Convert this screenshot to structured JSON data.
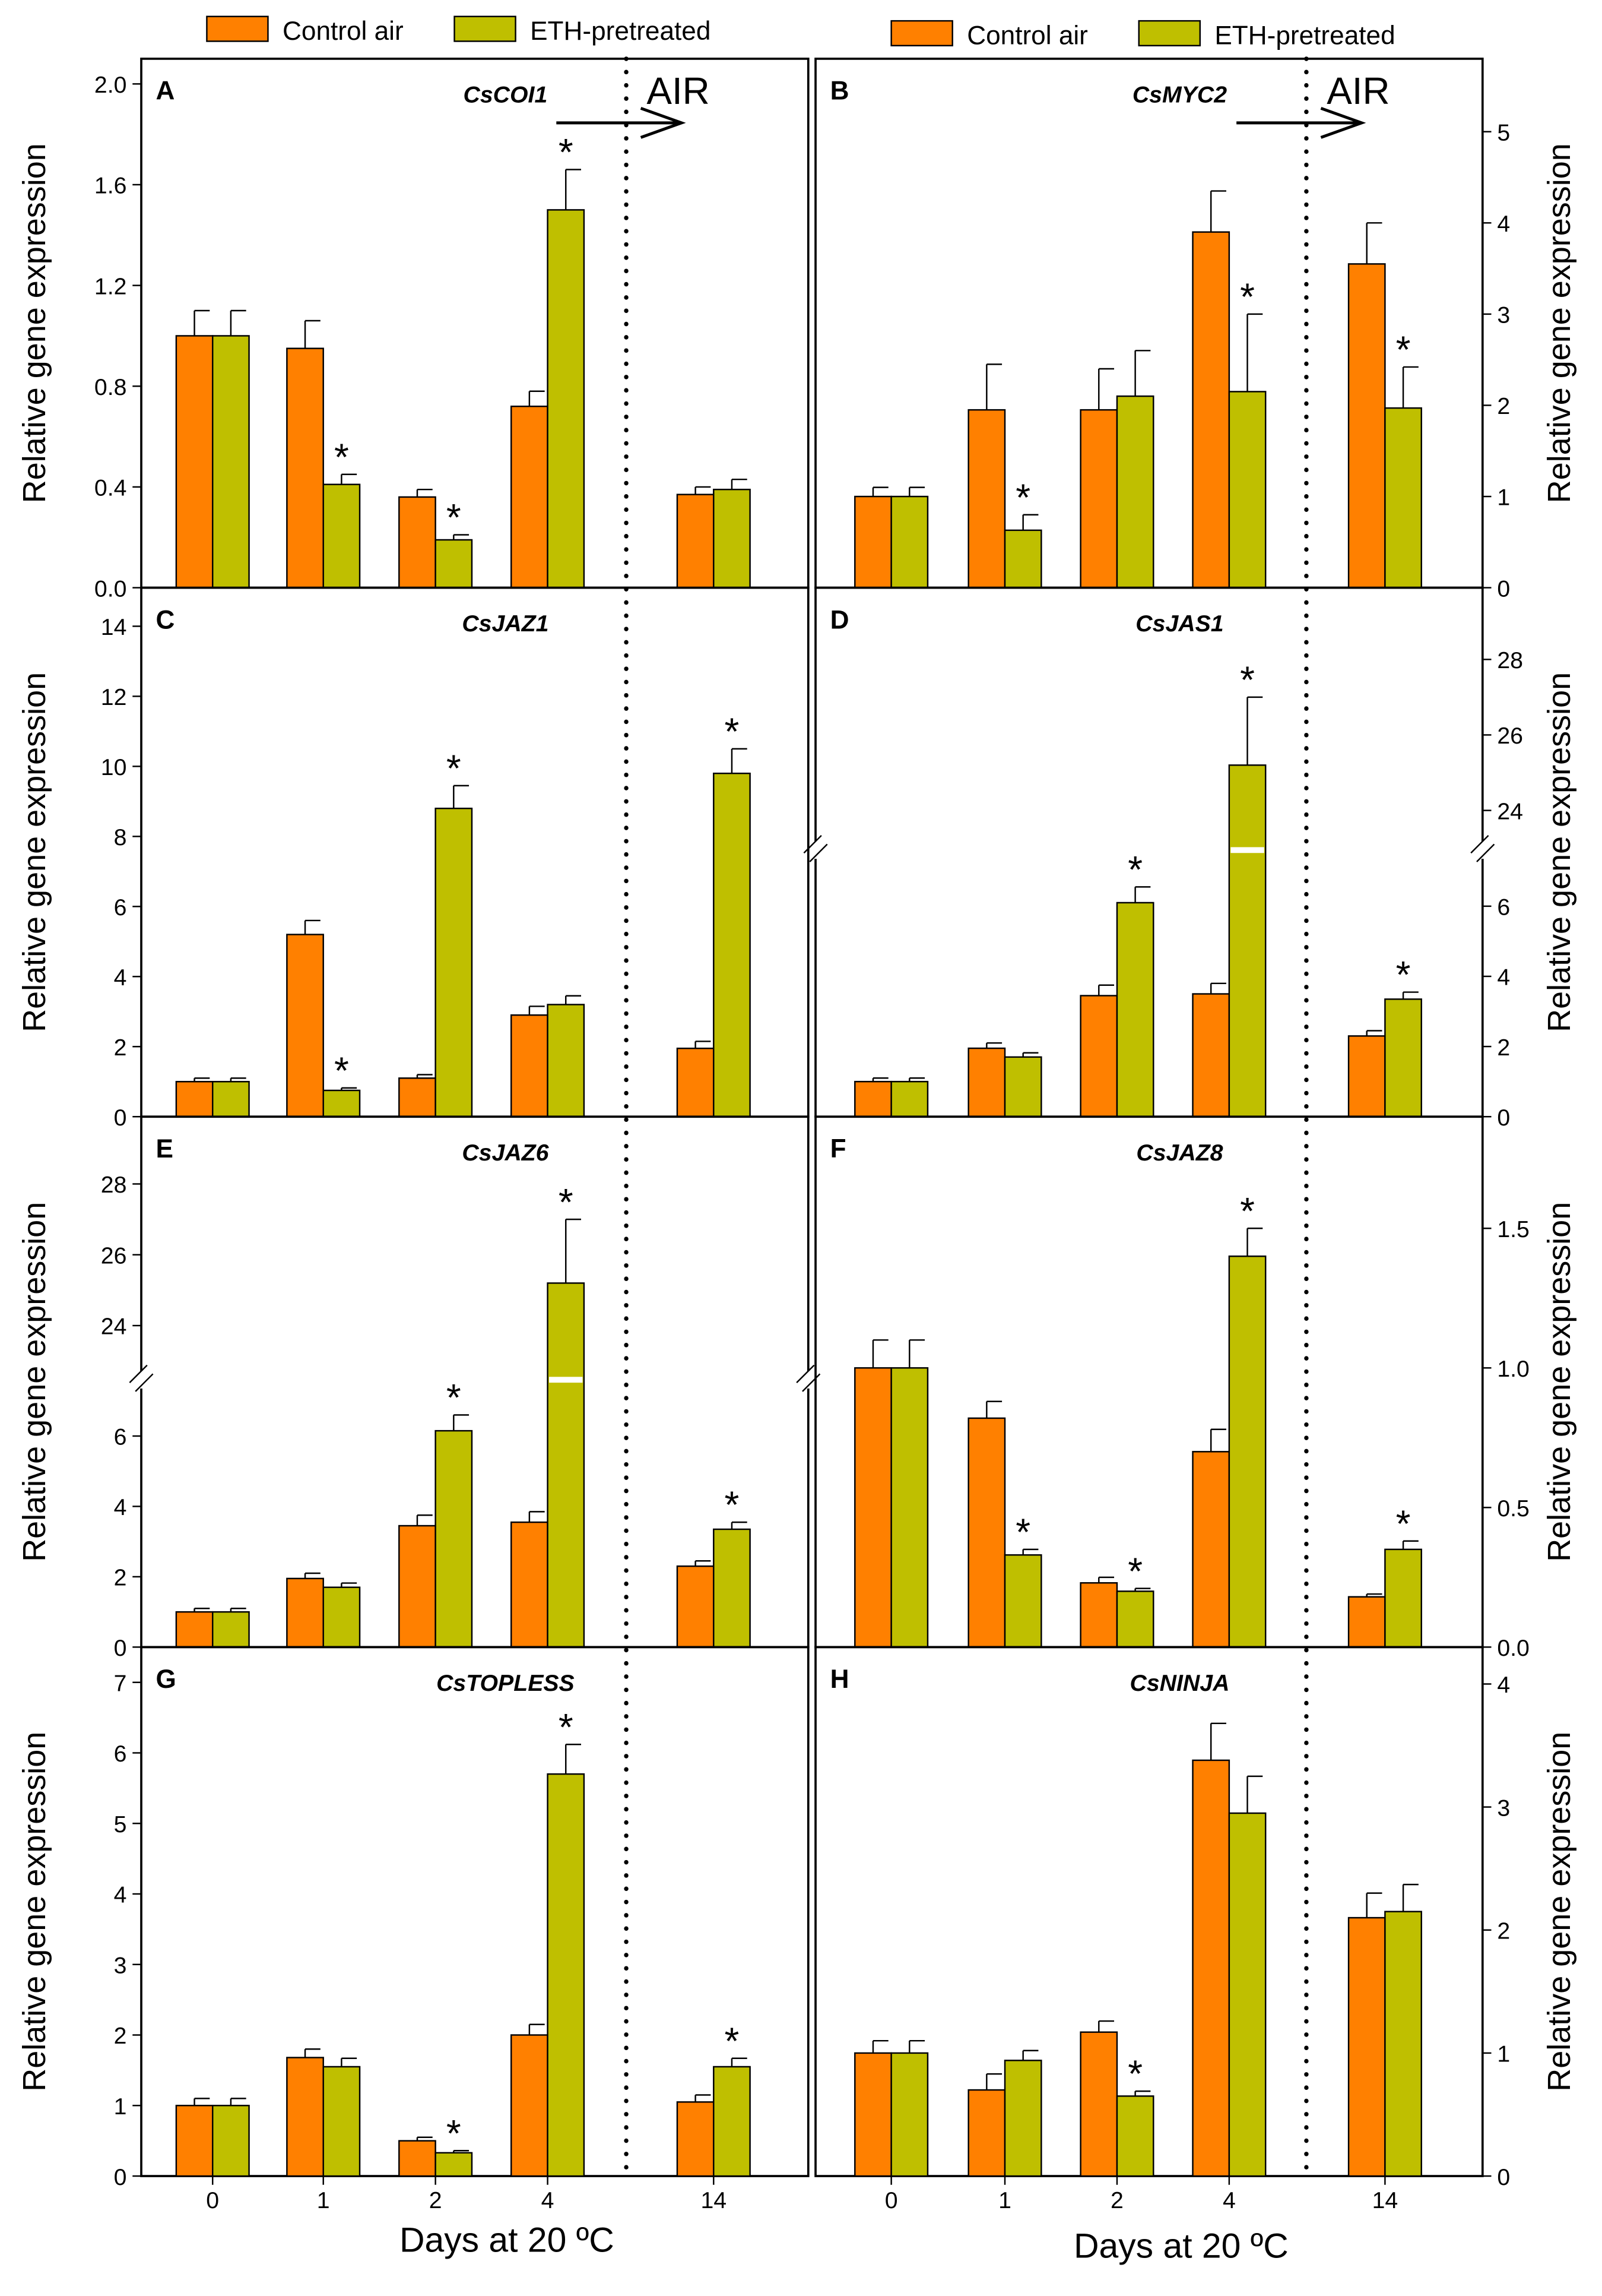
{
  "colors": {
    "control": "#FF8000",
    "eth": "#BFBF00"
  },
  "legend": {
    "control": "Control air",
    "eth": "ETH-pretreated"
  },
  "air_label": "AIR",
  "xlabel": "Days at 20 ºC",
  "ylabel": "Relative gene expression",
  "chart_data": [
    {
      "type": "bar",
      "panel": "A",
      "gene": "CsCOI1",
      "categories": [
        "0",
        "1",
        "2",
        "4",
        "14"
      ],
      "ylim": [
        0,
        2.1
      ],
      "ticks": [
        "0.0",
        "0.4",
        "0.8",
        "1.2",
        "1.6",
        "2.0"
      ],
      "tick_values": [
        0,
        0.4,
        0.8,
        1.2,
        1.6,
        2.0
      ],
      "axis_side": "left",
      "series": [
        {
          "name": "Control air",
          "values": [
            1.0,
            0.95,
            0.36,
            0.72,
            0.37
          ],
          "errors": [
            0.1,
            0.11,
            0.03,
            0.06,
            0.03
          ],
          "significant": [
            false,
            false,
            false,
            false,
            false
          ]
        },
        {
          "name": "ETH-pretreated",
          "values": [
            1.0,
            0.41,
            0.19,
            1.5,
            0.39
          ],
          "errors": [
            0.1,
            0.04,
            0.02,
            0.16,
            0.04
          ],
          "significant": [
            false,
            true,
            true,
            true,
            false
          ]
        }
      ]
    },
    {
      "type": "bar",
      "panel": "B",
      "gene": "CsMYC2",
      "categories": [
        "0",
        "1",
        "2",
        "4",
        "14"
      ],
      "ylim": [
        0,
        5.8
      ],
      "ticks": [
        "0",
        "1",
        "2",
        "3",
        "4",
        "5"
      ],
      "tick_values": [
        0,
        1,
        2,
        3,
        4,
        5
      ],
      "axis_side": "right",
      "series": [
        {
          "name": "Control air",
          "values": [
            1.0,
            1.95,
            1.95,
            3.9,
            3.55
          ],
          "errors": [
            0.1,
            0.5,
            0.45,
            0.45,
            0.45
          ],
          "significant": [
            false,
            false,
            false,
            false,
            false
          ]
        },
        {
          "name": "ETH-pretreated",
          "values": [
            1.0,
            0.63,
            2.1,
            2.15,
            1.97
          ],
          "errors": [
            0.1,
            0.17,
            0.5,
            0.85,
            0.45
          ],
          "significant": [
            false,
            true,
            false,
            true,
            true
          ]
        }
      ]
    },
    {
      "type": "bar",
      "panel": "C",
      "gene": "CsJAZ1",
      "categories": [
        "0",
        "1",
        "2",
        "4",
        "14"
      ],
      "ylim": [
        0,
        15.1
      ],
      "ticks": [
        "0",
        "2",
        "4",
        "6",
        "8",
        "10",
        "12",
        "14"
      ],
      "tick_values": [
        0,
        2,
        4,
        6,
        8,
        10,
        12,
        14
      ],
      "axis_side": "left",
      "series": [
        {
          "name": "Control air",
          "values": [
            1.0,
            5.2,
            1.1,
            2.9,
            1.95
          ],
          "errors": [
            0.1,
            0.4,
            0.1,
            0.25,
            0.2
          ],
          "significant": [
            false,
            false,
            false,
            false,
            false
          ]
        },
        {
          "name": "ETH-pretreated",
          "values": [
            1.0,
            0.75,
            8.8,
            3.2,
            9.8
          ],
          "errors": [
            0.1,
            0.07,
            0.65,
            0.25,
            0.7
          ],
          "significant": [
            false,
            true,
            true,
            false,
            true
          ]
        }
      ]
    },
    {
      "type": "bar",
      "panel": "D",
      "gene": "CsJAS1",
      "categories": [
        "0",
        "1",
        "2",
        "4",
        "14"
      ],
      "ylim": [
        0,
        29.9
      ],
      "axis_break": [
        7.6,
        22.95
      ],
      "ticks": [
        "0",
        "2",
        "4",
        "6",
        "24",
        "26",
        "28"
      ],
      "tick_values": [
        0,
        2,
        4,
        6,
        24,
        26,
        28
      ],
      "axis_side": "right",
      "series": [
        {
          "name": "Control air",
          "values": [
            1.0,
            1.95,
            3.45,
            3.5,
            2.3
          ],
          "errors": [
            0.1,
            0.15,
            0.3,
            0.3,
            0.15
          ],
          "significant": [
            false,
            false,
            false,
            false,
            false
          ]
        },
        {
          "name": "ETH-pretreated",
          "values": [
            1.0,
            1.7,
            6.1,
            25.2,
            3.35
          ],
          "errors": [
            0.1,
            0.12,
            0.45,
            1.8,
            0.2
          ],
          "significant": [
            false,
            false,
            true,
            true,
            true
          ]
        }
      ]
    },
    {
      "type": "bar",
      "panel": "E",
      "gene": "CsJAZ6",
      "categories": [
        "0",
        "1",
        "2",
        "4",
        "14"
      ],
      "ylim": [
        0,
        29.9
      ],
      "axis_break": [
        7.6,
        22.47
      ],
      "ticks": [
        "0",
        "2",
        "4",
        "6",
        "24",
        "26",
        "28"
      ],
      "tick_values": [
        0,
        2,
        4,
        6,
        24,
        26,
        28
      ],
      "axis_side": "left",
      "series": [
        {
          "name": "Control air",
          "values": [
            1.0,
            1.95,
            3.45,
            3.55,
            2.3
          ],
          "errors": [
            0.1,
            0.15,
            0.3,
            0.3,
            0.15
          ],
          "significant": [
            false,
            false,
            false,
            false,
            false
          ]
        },
        {
          "name": "ETH-pretreated",
          "values": [
            1.0,
            1.7,
            6.15,
            25.2,
            3.35
          ],
          "errors": [
            0.1,
            0.12,
            0.45,
            1.8,
            0.2
          ],
          "significant": [
            false,
            false,
            true,
            true,
            true
          ]
        }
      ]
    },
    {
      "type": "bar",
      "panel": "F",
      "gene": "CsJAZ8",
      "categories": [
        "0",
        "1",
        "2",
        "4",
        "14"
      ],
      "ylim": [
        0,
        1.9
      ],
      "ticks": [
        "0.0",
        "0.5",
        "1.0",
        "1.5"
      ],
      "tick_values": [
        0,
        0.5,
        1.0,
        1.5
      ],
      "axis_side": "right",
      "series": [
        {
          "name": "Control air",
          "values": [
            1.0,
            0.82,
            0.23,
            0.7,
            0.18
          ],
          "errors": [
            0.1,
            0.06,
            0.02,
            0.08,
            0.01
          ],
          "significant": [
            false,
            false,
            false,
            false,
            false
          ]
        },
        {
          "name": "ETH-pretreated",
          "values": [
            1.0,
            0.33,
            0.2,
            1.4,
            0.35
          ],
          "errors": [
            0.1,
            0.02,
            0.01,
            0.1,
            0.03
          ],
          "significant": [
            false,
            true,
            true,
            true,
            true
          ]
        }
      ]
    },
    {
      "type": "bar",
      "panel": "G",
      "gene": "CsTOPLESS",
      "categories": [
        "0",
        "1",
        "2",
        "4",
        "14"
      ],
      "ylim": [
        0,
        7.5
      ],
      "ticks": [
        "0",
        "1",
        "2",
        "3",
        "4",
        "5",
        "6",
        "7"
      ],
      "tick_values": [
        0,
        1,
        2,
        3,
        4,
        5,
        6,
        7
      ],
      "axis_side": "left",
      "series": [
        {
          "name": "Control air",
          "values": [
            1.0,
            1.68,
            0.5,
            2.0,
            1.05
          ],
          "errors": [
            0.1,
            0.12,
            0.05,
            0.15,
            0.1
          ],
          "significant": [
            false,
            false,
            false,
            false,
            false
          ]
        },
        {
          "name": "ETH-pretreated",
          "values": [
            1.0,
            1.55,
            0.33,
            5.7,
            1.55
          ],
          "errors": [
            0.1,
            0.12,
            0.03,
            0.42,
            0.12
          ],
          "significant": [
            false,
            false,
            true,
            true,
            true
          ]
        }
      ]
    },
    {
      "type": "bar",
      "panel": "H",
      "gene": "CsNINJA",
      "categories": [
        "0",
        "1",
        "2",
        "4",
        "14"
      ],
      "ylim": [
        0,
        4.3
      ],
      "ticks": [
        "0",
        "1",
        "2",
        "3",
        "4"
      ],
      "tick_values": [
        0,
        1,
        2,
        3,
        4
      ],
      "axis_side": "right",
      "series": [
        {
          "name": "Control air",
          "values": [
            1.0,
            0.7,
            1.17,
            3.38,
            2.1
          ],
          "errors": [
            0.1,
            0.13,
            0.09,
            0.3,
            0.2
          ],
          "significant": [
            false,
            false,
            false,
            false,
            false
          ]
        },
        {
          "name": "ETH-pretreated",
          "values": [
            1.0,
            0.94,
            0.65,
            2.95,
            2.15
          ],
          "errors": [
            0.1,
            0.08,
            0.04,
            0.3,
            0.22
          ],
          "significant": [
            false,
            false,
            true,
            false,
            false
          ]
        }
      ]
    }
  ]
}
